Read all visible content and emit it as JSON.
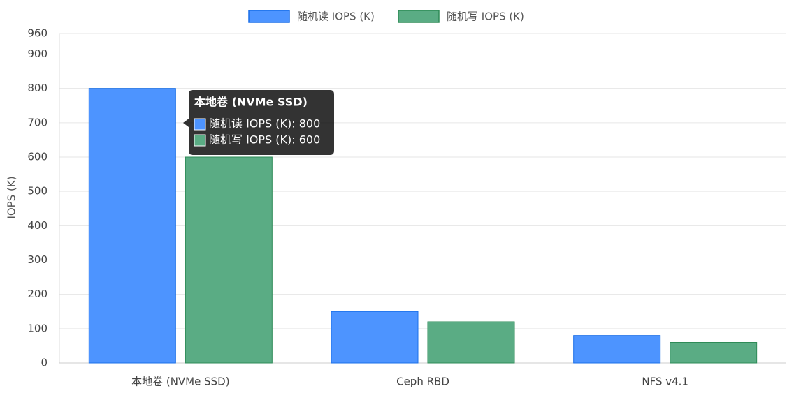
{
  "chart_data": {
    "type": "bar",
    "y_label": "IOPS (K)",
    "categories": [
      "本地卷 (NVMe SSD)",
      "Ceph RBD",
      "NFS v4.1"
    ],
    "series": [
      {
        "name": "随机读 IOPS (K)",
        "color": "#4d94ff",
        "border": "#1a6fe8",
        "values": [
          800,
          150,
          80
        ]
      },
      {
        "name": "随机写 IOPS (K)",
        "color": "#5aac84",
        "border": "#2e8b57",
        "values": [
          600,
          120,
          60
        ]
      }
    ],
    "ylim": [
      0,
      960
    ],
    "yticks": [
      0,
      100,
      200,
      300,
      400,
      500,
      600,
      700,
      800,
      900,
      960
    ],
    "grid": true,
    "legend": "top",
    "tooltip": {
      "title": "本地卷 (NVMe SSD)",
      "items": [
        "随机读 IOPS (K): 800",
        "随机写 IOPS (K): 600"
      ]
    }
  }
}
